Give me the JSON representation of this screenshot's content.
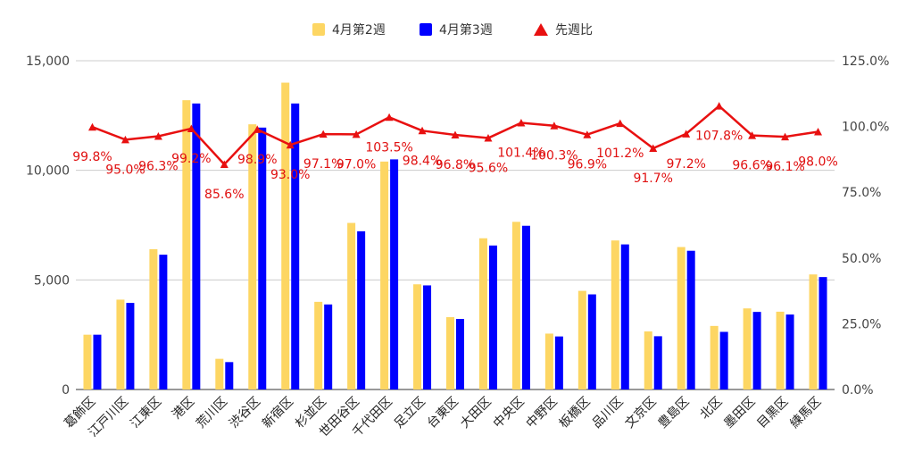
{
  "chart_data": {
    "type": "bar",
    "categories": [
      "葛飾区",
      "江戸川区",
      "江東区",
      "港区",
      "荒川区",
      "渋谷区",
      "新宿区",
      "杉並区",
      "世田谷区",
      "千代田区",
      "足立区",
      "台東区",
      "大田区",
      "中央区",
      "中野区",
      "板橋区",
      "品川区",
      "文京区",
      "豊島区",
      "北区",
      "墨田区",
      "目黒区",
      "練馬区"
    ],
    "series": [
      {
        "name": "4月第2週",
        "color": "#fdd663",
        "axis": "left",
        "values": [
          2500,
          4100,
          6400,
          13200,
          1400,
          12100,
          14000,
          4000,
          7600,
          10400,
          4800,
          3300,
          6900,
          7650,
          2550,
          4500,
          6800,
          2650,
          6500,
          2900,
          3700,
          3550,
          5250
        ]
      },
      {
        "name": "4月第3週",
        "color": "#0000ff",
        "axis": "left",
        "values": [
          2500,
          3950,
          6150,
          13050,
          1250,
          11950,
          13050,
          3880,
          7220,
          10500,
          4750,
          3220,
          6570,
          7470,
          2420,
          4340,
          6620,
          2430,
          6330,
          2630,
          3540,
          3420,
          5130
        ]
      }
    ],
    "line_series": {
      "name": "先週比",
      "color": "#e81010",
      "axis": "right",
      "values": [
        99.8,
        95.0,
        96.3,
        99.2,
        85.6,
        98.9,
        93.0,
        97.1,
        97.0,
        103.5,
        98.4,
        96.8,
        95.6,
        101.4,
        100.3,
        96.9,
        101.2,
        91.7,
        97.2,
        107.8,
        96.6,
        96.1,
        98.0
      ],
      "labels": [
        "99.8%",
        "95.0%",
        "96.3%",
        "99.2%",
        "85.6%",
        "98.9%",
        "93.0%",
        "97.1%",
        "97.0%",
        "103.5%",
        "98.4%",
        "96.8%",
        "95.6%",
        "101.4%",
        "100.3%",
        "96.9%",
        "101.2%",
        "91.7%",
        "97.2%",
        "107.8%",
        "96.6%",
        "96.1%",
        "98.0%"
      ]
    },
    "y_left": {
      "min": 0,
      "max": 15000,
      "ticks": [
        0,
        5000,
        10000,
        15000
      ],
      "tick_labels": [
        "0",
        "5,000",
        "10,000",
        "15,000"
      ]
    },
    "y_right": {
      "min": 0,
      "max": 125,
      "ticks": [
        0,
        25,
        50,
        75,
        100,
        125
      ],
      "tick_labels": [
        "0.0%",
        "25.0%",
        "50.0%",
        "75.0%",
        "100.0%",
        "125.0%"
      ]
    },
    "legend": {
      "position": "top",
      "items": [
        "4月第2週",
        "4月第3週",
        "先週比"
      ]
    },
    "grid": true,
    "title": "",
    "xlabel": "",
    "ylabel": ""
  }
}
